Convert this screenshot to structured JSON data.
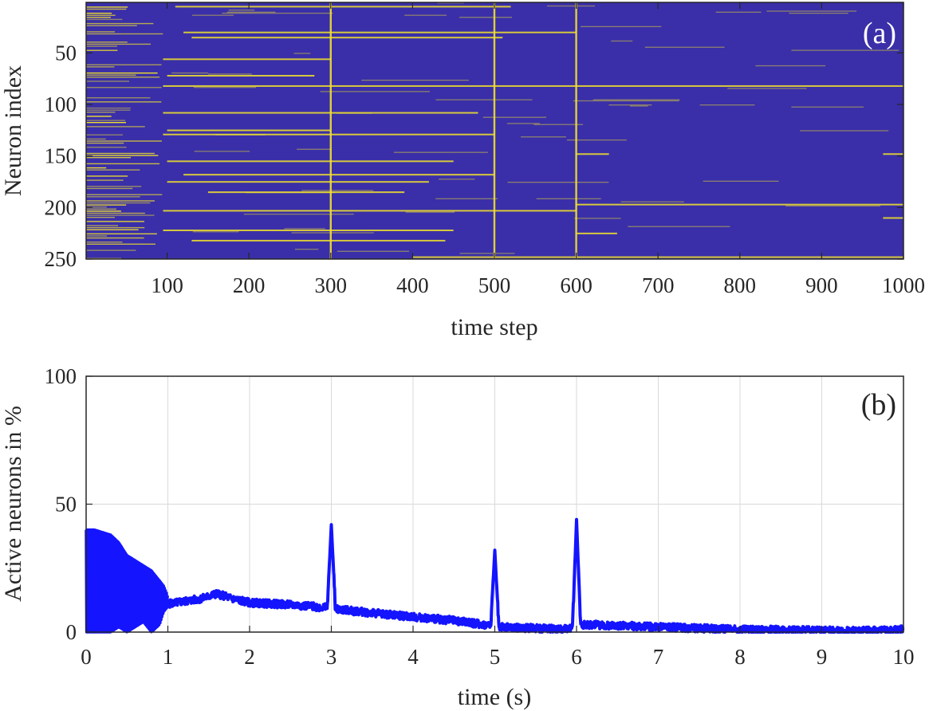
{
  "colors": {
    "raster_background": "#3a2fa8",
    "raster_spike": "#f2e32a",
    "line": "#1414ff",
    "grid": "#d9d9d9",
    "axis": "#262626"
  },
  "chart_data": [
    {
      "type": "heatmap",
      "panel_label": "(a)",
      "xlabel": "time step",
      "ylabel": "Neuron index",
      "xlim": [
        1,
        1000
      ],
      "ylim": [
        1,
        250
      ],
      "y_reversed": true,
      "xticks": [
        100,
        200,
        300,
        400,
        500,
        600,
        700,
        800,
        900,
        1000
      ],
      "xtick_labels": [
        "100",
        "200",
        "300",
        "400",
        "500",
        "600",
        "700",
        "800",
        "900",
        "1000"
      ],
      "yticks": [
        50,
        100,
        150,
        200,
        250
      ],
      "ytick_labels": [
        "50",
        "100",
        "150",
        "200",
        "250"
      ],
      "burst_columns": [
        300,
        500,
        600
      ],
      "dense_initial_segment": [
        1,
        95
      ],
      "persistent_rows": [
        {
          "neuron": 5,
          "from": 110,
          "to": 520
        },
        {
          "neuron": 30,
          "from": 120,
          "to": 600
        },
        {
          "neuron": 35,
          "from": 130,
          "to": 510
        },
        {
          "neuron": 56,
          "from": 95,
          "to": 300
        },
        {
          "neuron": 72,
          "from": 100,
          "to": 280
        },
        {
          "neuron": 82,
          "from": 95,
          "to": 1000
        },
        {
          "neuron": 108,
          "from": 95,
          "to": 480
        },
        {
          "neuron": 125,
          "from": 100,
          "to": 300
        },
        {
          "neuron": 129,
          "from": 95,
          "to": 500
        },
        {
          "neuron": 148,
          "from": 600,
          "to": 640
        },
        {
          "neuron": 148,
          "from": 975,
          "to": 1000
        },
        {
          "neuron": 155,
          "from": 100,
          "to": 450
        },
        {
          "neuron": 168,
          "from": 120,
          "to": 500
        },
        {
          "neuron": 175,
          "from": 100,
          "to": 420
        },
        {
          "neuron": 185,
          "from": 150,
          "to": 390
        },
        {
          "neuron": 197,
          "from": 600,
          "to": 1000
        },
        {
          "neuron": 203,
          "from": 95,
          "to": 600
        },
        {
          "neuron": 210,
          "from": 975,
          "to": 1000
        },
        {
          "neuron": 222,
          "from": 95,
          "to": 450
        },
        {
          "neuron": 225,
          "from": 600,
          "to": 650
        },
        {
          "neuron": 232,
          "from": 130,
          "to": 440
        },
        {
          "neuron": 248,
          "from": 400,
          "to": 1000
        }
      ]
    },
    {
      "type": "line",
      "panel_label": "(b)",
      "xlabel": "time (s)",
      "ylabel": "Active neurons in %",
      "xlim": [
        0,
        10
      ],
      "ylim": [
        0,
        100
      ],
      "grid": true,
      "xticks": [
        0,
        1,
        2,
        3,
        4,
        5,
        6,
        7,
        8,
        9,
        10
      ],
      "xtick_labels": [
        "0",
        "1",
        "2",
        "3",
        "4",
        "5",
        "6",
        "7",
        "8",
        "9",
        "10"
      ],
      "yticks": [
        0,
        50,
        100
      ],
      "ytick_labels": [
        "0",
        "50",
        "100"
      ],
      "envelope": {
        "x": [
          0.0,
          0.1,
          0.2,
          0.3,
          0.4,
          0.5,
          0.6,
          0.7,
          0.8,
          0.9,
          0.95,
          1.0
        ],
        "min": [
          0,
          0,
          0,
          0,
          2,
          0,
          2,
          4,
          0,
          3,
          8,
          10
        ],
        "max": [
          40,
          40,
          39,
          38,
          35,
          30,
          28,
          26,
          24,
          20,
          18,
          14
        ]
      },
      "series": [
        {
          "x": [
            1.0,
            1.2,
            1.4,
            1.6,
            1.8,
            2.0,
            2.3,
            2.6,
            2.95,
            3.0,
            3.05,
            3.5,
            4.0,
            4.5,
            4.95,
            5.0,
            5.05,
            5.5,
            5.95,
            6.0,
            6.05,
            6.5,
            7.0,
            7.5,
            8.0,
            8.5,
            9.0,
            9.5,
            10.0
          ],
          "y": [
            11,
            12,
            13,
            15,
            13,
            11.5,
            11,
            10.5,
            9.5,
            42,
            9,
            7.5,
            6,
            4.5,
            2.5,
            32,
            2,
            1.5,
            1.2,
            44,
            3,
            2.5,
            2,
            1.5,
            1,
            0.8,
            0.6,
            0.4,
            1
          ]
        }
      ]
    }
  ]
}
